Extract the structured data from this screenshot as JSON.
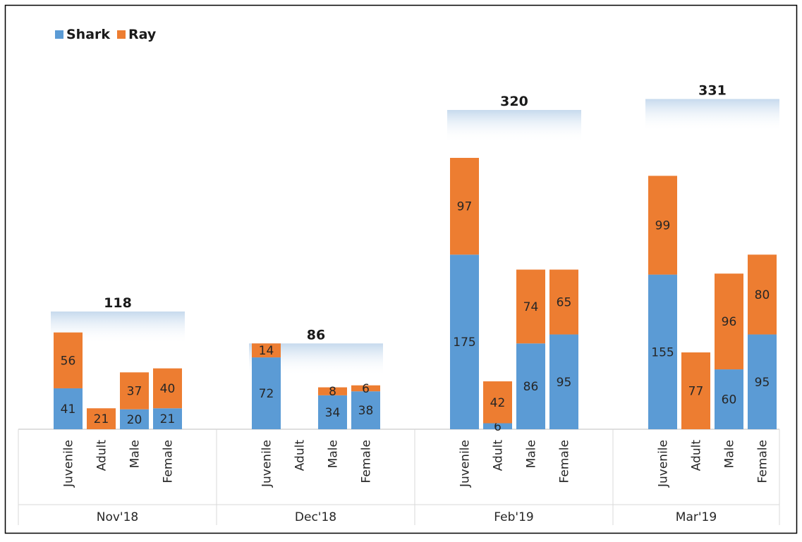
{
  "chart_data": {
    "type": "bar",
    "stacked": true,
    "title": "",
    "xlabel": "",
    "ylabel": "",
    "ylim": [
      0,
      340
    ],
    "grid": false,
    "legend_position": "top-left",
    "groups": [
      "Nov'18",
      "Dec'18",
      "Feb'19",
      "Mar'19"
    ],
    "categories": [
      "Juvenile",
      "Adult",
      "Male",
      "Female"
    ],
    "group_totals": [
      118,
      86,
      320,
      331
    ],
    "series": [
      {
        "name": "Shark",
        "color": "#5b9bd5",
        "values": [
          [
            41,
            null,
            20,
            21
          ],
          [
            72,
            null,
            34,
            38
          ],
          [
            175,
            6,
            86,
            95
          ],
          [
            155,
            null,
            60,
            95
          ]
        ]
      },
      {
        "name": "Ray",
        "color": "#ed7d31",
        "values": [
          [
            56,
            21,
            37,
            40
          ],
          [
            14,
            null,
            8,
            6
          ],
          [
            97,
            42,
            74,
            65
          ],
          [
            99,
            77,
            96,
            80
          ]
        ]
      }
    ]
  }
}
